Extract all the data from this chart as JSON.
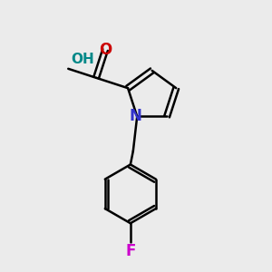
{
  "background_color": "#ebebeb",
  "bond_color": "#000000",
  "N_color": "#3333cc",
  "O_color": "#cc0000",
  "F_color": "#cc00cc",
  "OH_color": "#008888",
  "line_width": 1.8,
  "font_size": 12,
  "xlim": [
    0,
    10
  ],
  "ylim": [
    0,
    10
  ]
}
